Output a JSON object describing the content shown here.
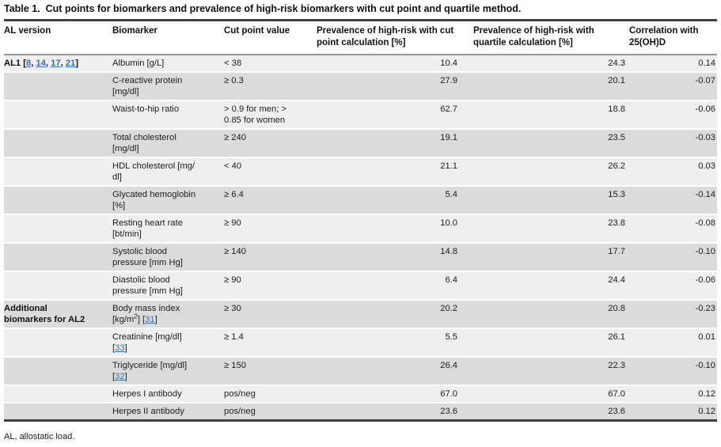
{
  "title": {
    "label": "Table 1.",
    "text": "Cut points for biomarkers and prevalence of high-risk biomarkers with cut point and quartile method."
  },
  "footnote": "AL, allostatic load.",
  "colors": {
    "link": "#3570b4",
    "row_light": "#f0efef",
    "row_dark": "#dbdbdb",
    "rule_dark": "#424242",
    "rule_header": "#969696"
  },
  "table": {
    "columns": [
      "AL version",
      "Biomarker",
      "Cut point value",
      "Prevalence of high-risk with cut point calculation [%]",
      "Prevalence of high-risk with quartile calculation [%]",
      "Correlation with 25(OH)D"
    ],
    "rows": [
      {
        "shade": "light",
        "al": [
          {
            "t": "text",
            "v": "AL1 ["
          },
          {
            "t": "link",
            "v": "8"
          },
          {
            "t": "text",
            "v": ", "
          },
          {
            "t": "link",
            "v": "14"
          },
          {
            "t": "text",
            "v": ", "
          },
          {
            "t": "link",
            "v": "17"
          },
          {
            "t": "text",
            "v": ", "
          },
          {
            "t": "link",
            "v": "21"
          },
          {
            "t": "text",
            "v": "]"
          }
        ],
        "biomarker": "Albumin [g/L]",
        "cut": "< 38",
        "prev_cut": "10.4",
        "prev_quartile": "24.3",
        "corr": "0.14"
      },
      {
        "shade": "dark",
        "al": "",
        "biomarker": "C-reactive protein\n[mg/dl]",
        "cut": "≥ 0.3",
        "prev_cut": "27.9",
        "prev_quartile": "20.1",
        "corr": "-0.07"
      },
      {
        "shade": "light",
        "al": "",
        "biomarker": "Waist-to-hip ratio",
        "cut": "> 0.9 for men; >\n0.85 for women",
        "prev_cut": "62.7",
        "prev_quartile": "18.8",
        "corr": "-0.06"
      },
      {
        "shade": "dark",
        "al": "",
        "biomarker": "Total cholesterol\n[mg/dl]",
        "cut": "≥ 240",
        "prev_cut": "19.1",
        "prev_quartile": "23.5",
        "corr": "-0.03"
      },
      {
        "shade": "light",
        "al": "",
        "biomarker": "HDL cholesterol [mg/\ndl]",
        "cut": "< 40",
        "prev_cut": "21.1",
        "prev_quartile": "26.2",
        "corr": "0.03"
      },
      {
        "shade": "dark",
        "al": "",
        "biomarker": "Glycated hemoglobin\n[%]",
        "cut": "≥ 6.4",
        "prev_cut": "5.4",
        "prev_quartile": "15.3",
        "corr": "-0.14"
      },
      {
        "shade": "light",
        "al": "",
        "biomarker": "Resting heart rate\n[bt/min]",
        "cut": "≥ 90",
        "prev_cut": "10.0",
        "prev_quartile": "23.8",
        "corr": "-0.08"
      },
      {
        "shade": "dark",
        "al": "",
        "biomarker": "Systolic blood\npressure [mm Hg]",
        "cut": "≥ 140",
        "prev_cut": "14.8",
        "prev_quartile": "17.7",
        "corr": "-0.10"
      },
      {
        "shade": "light",
        "al": "",
        "biomarker": "Diastolic blood\npressure [mm Hg]",
        "cut": "≥ 90",
        "prev_cut": "6.4",
        "prev_quartile": "24.4",
        "corr": "-0.06"
      },
      {
        "shade": "dark",
        "al": "Additional\nbiomarkers for AL2",
        "biomarker": [
          {
            "t": "text",
            "v": "Body mass index\n[kg/m"
          },
          {
            "t": "sup",
            "v": "2"
          },
          {
            "t": "text",
            "v": "] ["
          },
          {
            "t": "link",
            "v": "31"
          },
          {
            "t": "text",
            "v": "]"
          }
        ],
        "cut": "≥ 30",
        "prev_cut": "20.2",
        "prev_quartile": "20.8",
        "corr": "-0.23"
      },
      {
        "shade": "light",
        "al": "",
        "biomarker": [
          {
            "t": "text",
            "v": "Creatinine [mg/dl]\n["
          },
          {
            "t": "link",
            "v": "33"
          },
          {
            "t": "text",
            "v": "]"
          }
        ],
        "cut": "≥ 1.4",
        "prev_cut": "5.5",
        "prev_quartile": "26.1",
        "corr": "0.01"
      },
      {
        "shade": "dark",
        "al": "",
        "biomarker": [
          {
            "t": "text",
            "v": "Triglyceride [mg/dl]\n["
          },
          {
            "t": "link",
            "v": "32"
          },
          {
            "t": "text",
            "v": "]"
          }
        ],
        "cut": "≥ 150",
        "prev_cut": "26.4",
        "prev_quartile": "22.3",
        "corr": "-0.10"
      },
      {
        "shade": "light",
        "al": "",
        "biomarker": "Herpes I antibody",
        "cut": "pos/neg",
        "prev_cut": "67.0",
        "prev_quartile": "67.0",
        "corr": "0.12"
      },
      {
        "shade": "dark",
        "al": "",
        "biomarker": "Herpes II antibody",
        "cut": "pos/neg",
        "prev_cut": "23.6",
        "prev_quartile": "23.6",
        "corr": "0.12"
      }
    ]
  }
}
